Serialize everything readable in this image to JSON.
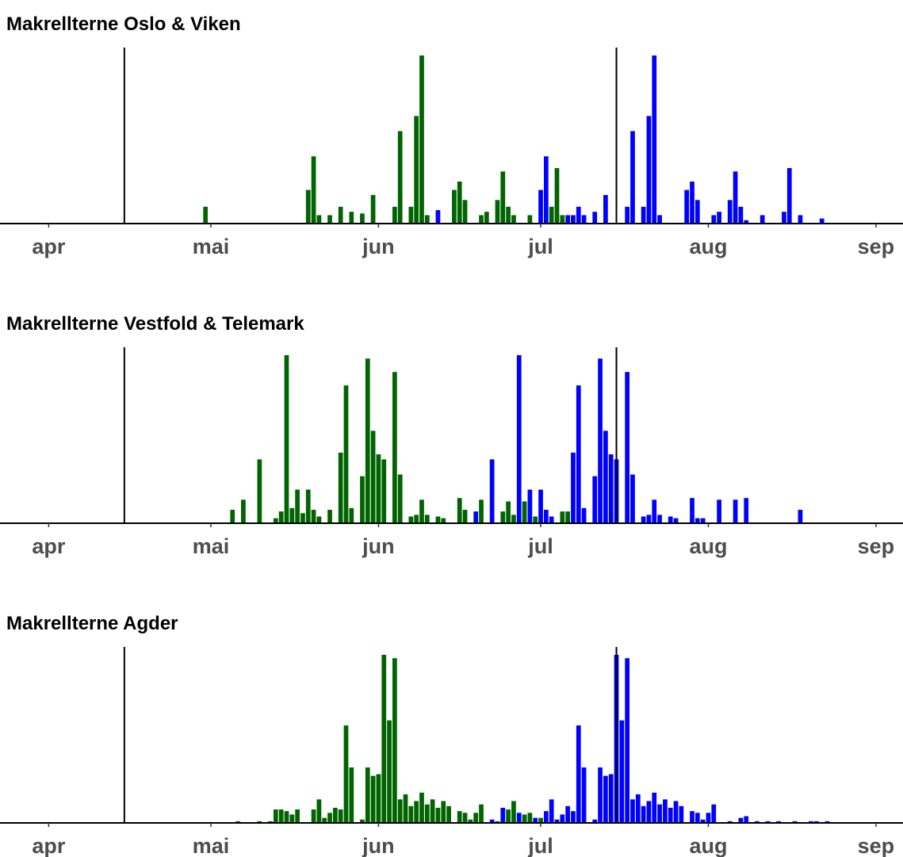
{
  "chart_data": [
    {
      "type": "bar",
      "title": "Makrellterne Oslo & Viken",
      "xlim": [
        -9,
        158
      ],
      "ylim": [
        0,
        10
      ],
      "xticks": [
        {
          "value": 0,
          "label": "apr"
        },
        {
          "value": 30,
          "label": "mai"
        },
        {
          "value": 61,
          "label": "jun"
        },
        {
          "value": 91,
          "label": "jul"
        },
        {
          "value": 122,
          "label": "aug"
        },
        {
          "value": 153,
          "label": "sep"
        }
      ],
      "vlines": [
        14,
        105
      ],
      "series": [
        {
          "color": "#006400",
          "x": [
            29,
            48,
            49,
            50,
            52,
            54,
            56,
            58,
            60,
            64,
            65,
            67,
            68,
            69,
            70,
            75,
            76,
            77,
            80,
            81,
            83,
            84,
            85,
            86,
            89,
            93,
            94,
            95
          ],
          "values": [
            1,
            2,
            4,
            0.5,
            0.5,
            1,
            0.7,
            0.6,
            1.7,
            1,
            5.5,
            1,
            6.4,
            10,
            0.5,
            2,
            2.5,
            1.4,
            0.5,
            0.7,
            1.4,
            3.1,
            1,
            0.5,
            0.5,
            1,
            3.3,
            0.5
          ]
        },
        {
          "color": "#0000ff",
          "x": [
            72,
            91,
            92,
            96,
            97,
            98,
            99,
            101,
            103,
            107,
            108,
            110,
            111,
            112,
            113,
            118,
            119,
            120,
            123,
            124,
            126,
            127,
            128,
            129,
            132,
            136,
            137,
            139,
            143
          ],
          "values": [
            0.8,
            2,
            4,
            0.5,
            0.5,
            1,
            0.5,
            0.7,
            1.7,
            1,
            5.5,
            1,
            6.4,
            10,
            0.5,
            2,
            2.5,
            1.4,
            0.5,
            0.7,
            1.4,
            3.1,
            1,
            0.2,
            0.5,
            0.7,
            3.3,
            0.5,
            0.3
          ]
        }
      ]
    },
    {
      "type": "bar",
      "title": "Makrellterne Vestfold & Telemark",
      "xlim": [
        -9,
        158
      ],
      "ylim": [
        0,
        10
      ],
      "xticks": [
        {
          "value": 0,
          "label": "apr"
        },
        {
          "value": 30,
          "label": "mai"
        },
        {
          "value": 61,
          "label": "jun"
        },
        {
          "value": 91,
          "label": "jul"
        },
        {
          "value": 122,
          "label": "aug"
        },
        {
          "value": 153,
          "label": "sep"
        }
      ],
      "vlines": [
        14,
        105
      ],
      "series": [
        {
          "color": "#006400",
          "x": [
            34,
            36,
            39,
            42,
            43,
            44,
            45,
            46,
            47,
            48,
            49,
            50,
            52,
            54,
            55,
            56,
            58,
            59,
            60,
            61,
            62,
            64,
            65,
            67,
            68,
            69,
            70,
            72,
            73,
            76,
            77,
            80,
            84,
            85,
            86,
            88,
            90,
            95,
            96
          ],
          "values": [
            0.8,
            1.4,
            3.8,
            0.3,
            0.7,
            10,
            0.9,
            2,
            0.6,
            2,
            0.8,
            0.4,
            0.8,
            4.2,
            8.2,
            0.9,
            2.8,
            9.8,
            5.5,
            4.1,
            3.8,
            9,
            2.9,
            0.4,
            0.5,
            1.4,
            0.5,
            0.4,
            0.3,
            1.5,
            0.8,
            1.4,
            0.7,
            1.3,
            0.5,
            1.3,
            0.4,
            0.7,
            0.7
          ]
        },
        {
          "color": "#0000ff",
          "x": [
            79,
            82,
            87,
            89,
            91,
            92,
            93,
            97,
            98,
            99,
            101,
            102,
            103,
            104,
            105,
            107,
            108,
            110,
            111,
            112,
            113,
            115,
            116,
            119,
            120,
            121,
            124,
            127,
            129,
            139
          ],
          "values": [
            0.7,
            3.8,
            10,
            2,
            2,
            0.8,
            0.4,
            4.2,
            8.2,
            0.9,
            2.8,
            9.8,
            5.5,
            4.1,
            3.8,
            9,
            2.9,
            0.4,
            0.5,
            1.4,
            0.5,
            0.4,
            0.3,
            1.5,
            0.3,
            0.3,
            1.4,
            1.4,
            1.5,
            0.8
          ]
        }
      ]
    },
    {
      "type": "bar",
      "title": "Makrellterne Agder",
      "xlim": [
        -9,
        158
      ],
      "ylim": [
        0,
        10
      ],
      "xticks": [
        {
          "value": 0,
          "label": "apr"
        },
        {
          "value": 30,
          "label": "mai"
        },
        {
          "value": 61,
          "label": "jun"
        },
        {
          "value": 91,
          "label": "jul"
        },
        {
          "value": 122,
          "label": "aug"
        },
        {
          "value": 153,
          "label": "sep"
        }
      ],
      "vlines": [
        14,
        105
      ],
      "series": [
        {
          "color": "#006400",
          "x": [
            35,
            39,
            41,
            42,
            43,
            44,
            45,
            46,
            49,
            50,
            51,
            52,
            53,
            54,
            55,
            56,
            58,
            59,
            60,
            61,
            62,
            63,
            64,
            65,
            66,
            67,
            68,
            69,
            70,
            71,
            72,
            73,
            74,
            76,
            77,
            78,
            79,
            80,
            83,
            85,
            86,
            88,
            89,
            91
          ],
          "values": [
            0.1,
            0.1,
            0.1,
            0.8,
            0.8,
            0.7,
            0.5,
            0.8,
            0.8,
            1.4,
            0.3,
            0.6,
            0.9,
            0.8,
            5.8,
            3.3,
            0.2,
            3.3,
            2.8,
            2.9,
            10,
            6.1,
            9.8,
            1.4,
            1.7,
            1,
            1.3,
            1.8,
            1.1,
            1.4,
            0.9,
            1.3,
            1,
            0.7,
            0.6,
            0.2,
            0.6,
            1.1,
            0.1,
            0.8,
            1.3,
            0.5,
            0.6,
            0.3
          ]
        },
        {
          "color": "#0000ff",
          "x": [
            82,
            84,
            87,
            90,
            92,
            93,
            94,
            95,
            96,
            97,
            98,
            99,
            101,
            102,
            103,
            104,
            105,
            106,
            107,
            108,
            109,
            110,
            111,
            112,
            113,
            114,
            115,
            116,
            117,
            119,
            120,
            121,
            122,
            123,
            126,
            128,
            129,
            131,
            133,
            135,
            138,
            141,
            142,
            144
          ],
          "values": [
            0.2,
            0.9,
            0.6,
            0.3,
            0.7,
            1.4,
            0.2,
            0.5,
            1,
            0.7,
            5.8,
            3.3,
            0.2,
            3.3,
            2.8,
            2.9,
            10,
            6.1,
            9.8,
            1.4,
            1.7,
            1,
            1.3,
            1.8,
            1.1,
            1.4,
            0.9,
            1.3,
            1,
            0.7,
            0.6,
            0.2,
            0.6,
            1.1,
            0.1,
            0.3,
            0.4,
            0.1,
            0.1,
            0.1,
            0.1,
            0.1,
            0.1,
            0.1
          ]
        }
      ]
    }
  ]
}
